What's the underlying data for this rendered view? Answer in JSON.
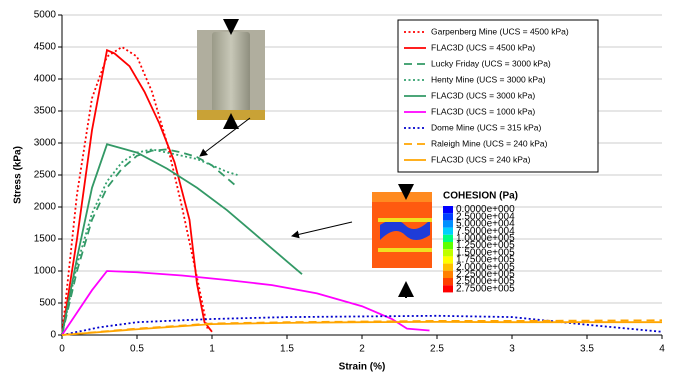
{
  "chart_data": {
    "type": "line",
    "ylabel": "Stress (kPa)",
    "xlabel": "Strain (%)",
    "xlim": [
      0,
      4
    ],
    "xticks": [
      0,
      0.5,
      1,
      1.5,
      2,
      2.5,
      3,
      3.5,
      4
    ],
    "ylim": [
      0,
      5000
    ],
    "yticks": [
      0,
      500,
      1000,
      1500,
      2000,
      2500,
      3000,
      3500,
      4000,
      4500,
      5000
    ],
    "grid": true,
    "legend": "top-right",
    "series": [
      {
        "name": "Garpenberg Mine (UCS = 4500 kPa)",
        "color": "#ff0000",
        "dash": "dotted",
        "x": [
          0,
          0.1,
          0.2,
          0.3,
          0.4,
          0.5,
          0.6,
          0.7,
          0.8,
          0.9,
          0.97
        ],
        "values": [
          0,
          2200,
          3700,
          4350,
          4500,
          4350,
          3800,
          3000,
          2000,
          900,
          100
        ]
      },
      {
        "name": "FLAC3D (UCS = 4500 kPa)",
        "color": "#ff0000",
        "dash": "solid",
        "x": [
          0,
          0.1,
          0.2,
          0.3,
          0.35,
          0.45,
          0.55,
          0.65,
          0.75,
          0.85,
          0.9,
          0.95,
          1.0
        ],
        "values": [
          0,
          1500,
          3200,
          4450,
          4400,
          4200,
          3800,
          3300,
          2700,
          1800,
          800,
          200,
          50
        ]
      },
      {
        "name": "Lucky Friday (UCS = 3000 kPa)",
        "color": "#339966",
        "dash": "dashed",
        "x": [
          0,
          0.1,
          0.2,
          0.3,
          0.4,
          0.5,
          0.6,
          0.7,
          0.8,
          0.9,
          1.0,
          1.1,
          1.15
        ],
        "values": [
          0,
          1000,
          1800,
          2300,
          2600,
          2800,
          2880,
          2900,
          2850,
          2780,
          2650,
          2450,
          2350
        ]
      },
      {
        "name": "Henty Mine (UCS = 3000 kPa)",
        "color": "#33a06e",
        "dash": "dotted",
        "x": [
          0,
          0.1,
          0.2,
          0.3,
          0.4,
          0.5,
          0.6,
          0.7,
          0.8,
          0.9,
          1.0,
          1.1,
          1.17
        ],
        "values": [
          0,
          1100,
          1900,
          2400,
          2700,
          2850,
          2900,
          2850,
          2800,
          2750,
          2650,
          2550,
          2500
        ]
      },
      {
        "name": "FLAC3D (UCS = 3000 kPa)",
        "color": "#339966",
        "dash": "solid",
        "x": [
          0,
          0.1,
          0.2,
          0.3,
          0.5,
          0.7,
          0.9,
          1.1,
          1.3,
          1.5,
          1.6
        ],
        "values": [
          0,
          1200,
          2300,
          2980,
          2850,
          2600,
          2300,
          1950,
          1550,
          1150,
          950
        ]
      },
      {
        "name": "FLAC3D (UCS = 1000 kPa)",
        "color": "#ff00ff",
        "dash": "solid",
        "x": [
          0,
          0.1,
          0.2,
          0.3,
          0.5,
          0.8,
          1.1,
          1.4,
          1.7,
          2.0,
          2.2,
          2.3,
          2.45
        ],
        "values": [
          0,
          350,
          700,
          1000,
          980,
          930,
          860,
          780,
          650,
          450,
          250,
          100,
          70
        ]
      },
      {
        "name": "Dome Mine (UCS = 315 kPa)",
        "color": "#0000cc",
        "dash": "dotted",
        "x": [
          0,
          0.25,
          0.5,
          1,
          1.5,
          2,
          2.5,
          3,
          3.5,
          4
        ],
        "values": [
          0,
          120,
          200,
          250,
          280,
          290,
          300,
          280,
          160,
          50
        ]
      },
      {
        "name": "Raleigh Mine (UCS = 240 kPa)",
        "color": "#ffa500",
        "dash": "dashed",
        "x": [
          0,
          0.5,
          1,
          1.5,
          2,
          2.5,
          3,
          3.5,
          4
        ],
        "values": [
          0,
          100,
          180,
          200,
          210,
          220,
          220,
          225,
          230
        ]
      },
      {
        "name": "FLAC3D (UCS = 240 kPa)",
        "color": "#ffa500",
        "dash": "solid",
        "x": [
          0,
          0.5,
          1,
          1.5,
          2,
          2.5,
          3,
          3.5,
          4
        ],
        "values": [
          0,
          90,
          170,
          190,
          200,
          205,
          200,
          200,
          200
        ]
      }
    ],
    "inset": {
      "title": "COHESION (Pa)",
      "labels": [
        "0.0000e+000",
        "2.5000e+004",
        "5.0000e+004",
        "7.5000e+004",
        "1.0000e+005",
        "1.2500e+005",
        "1.5000e+005",
        "1.7500e+005",
        "2.0000e+005",
        "2.2500e+005",
        "2.5000e+005",
        "2.7500e+005"
      ]
    }
  }
}
